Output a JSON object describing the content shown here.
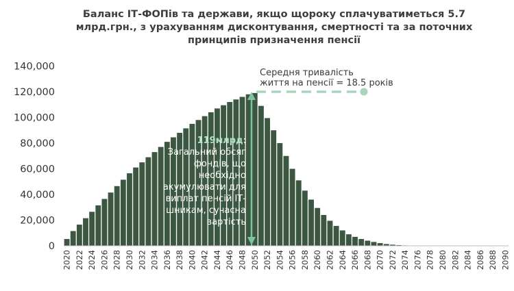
{
  "title_lines": [
    "Баланс ІТ-ФОПів та держави, якщо щороку сплачуватиметься 5.7",
    "млрд.грн., з урахуванням дисконтування, смертності та за поточних",
    "принципів призначення пенсії"
  ],
  "colors": {
    "bar": "#3b5742",
    "accent": "#7fc39f",
    "dashed": "#a8d5bc",
    "text": "#333333"
  },
  "annotations": {
    "peak_bold": "119млрд",
    "peak_text": [
      ": ",
      "Загальний обсяг",
      "фондів, що",
      "необхідно",
      "акумулювати для",
      "виплат пенсій ІТ-",
      "шникам, сучасна",
      "вартість"
    ],
    "life_lines": [
      "Середня тривалість",
      "життя на пенсії = 18.5 років"
    ]
  },
  "chart_data": {
    "type": "bar",
    "title": "Баланс ІТ-ФОПів та держави, якщо щороку сплачуватиметься 5.7 млрд.грн., з урахуванням дисконтування, смертності та за поточних принципів призначення пенсії",
    "xlabel": "",
    "ylabel": "",
    "ylim": [
      0,
      140000
    ],
    "yticks": [
      0,
      20000,
      40000,
      60000,
      80000,
      100000,
      120000,
      140000
    ],
    "ytick_labels": [
      "0",
      "20,000",
      "40,000",
      "60,000",
      "80,000",
      "100,000",
      "120,000",
      "140,000"
    ],
    "grid": false,
    "categories": [
      2020,
      2021,
      2022,
      2023,
      2024,
      2025,
      2026,
      2027,
      2028,
      2029,
      2030,
      2031,
      2032,
      2033,
      2034,
      2035,
      2036,
      2037,
      2038,
      2039,
      2040,
      2041,
      2042,
      2043,
      2044,
      2045,
      2046,
      2047,
      2048,
      2049,
      2050,
      2051,
      2052,
      2053,
      2054,
      2055,
      2056,
      2057,
      2058,
      2059,
      2060,
      2061,
      2062,
      2063,
      2064,
      2065,
      2066,
      2067,
      2068,
      2069,
      2070,
      2071,
      2072,
      2073,
      2074,
      2075,
      2076,
      2077,
      2078,
      2079,
      2080,
      2081,
      2082,
      2083,
      2084,
      2085,
      2086,
      2087,
      2088,
      2089,
      2090
    ],
    "xtick_labels": [
      "2020",
      "2022",
      "2024",
      "2026",
      "2028",
      "2030",
      "2032",
      "2034",
      "2036",
      "2038",
      "2040",
      "2042",
      "2044",
      "2046",
      "2048",
      "2050",
      "2052",
      "2054",
      "2056",
      "2058",
      "2060",
      "2062",
      "2064",
      "2066",
      "2068",
      "2070",
      "2072",
      "2074",
      "2076",
      "2078",
      "2080",
      "2082",
      "2084",
      "2086",
      "2088",
      "2090"
    ],
    "values": [
      5300,
      11500,
      16500,
      21500,
      26500,
      31500,
      36500,
      41500,
      46500,
      51500,
      56500,
      61000,
      65000,
      69000,
      73000,
      77000,
      81000,
      84500,
      88000,
      91500,
      95000,
      98000,
      101000,
      104000,
      107000,
      109500,
      112000,
      114000,
      116000,
      118000,
      119000,
      109000,
      99500,
      90000,
      80000,
      70000,
      60000,
      51000,
      43000,
      36000,
      29500,
      24000,
      19500,
      15500,
      12000,
      9000,
      7000,
      5300,
      4000,
      3000,
      2100,
      1400,
      900,
      550,
      320,
      180,
      100,
      50,
      25,
      10,
      5,
      0,
      0,
      0,
      0,
      0,
      0,
      0,
      0,
      0,
      0
    ]
  }
}
